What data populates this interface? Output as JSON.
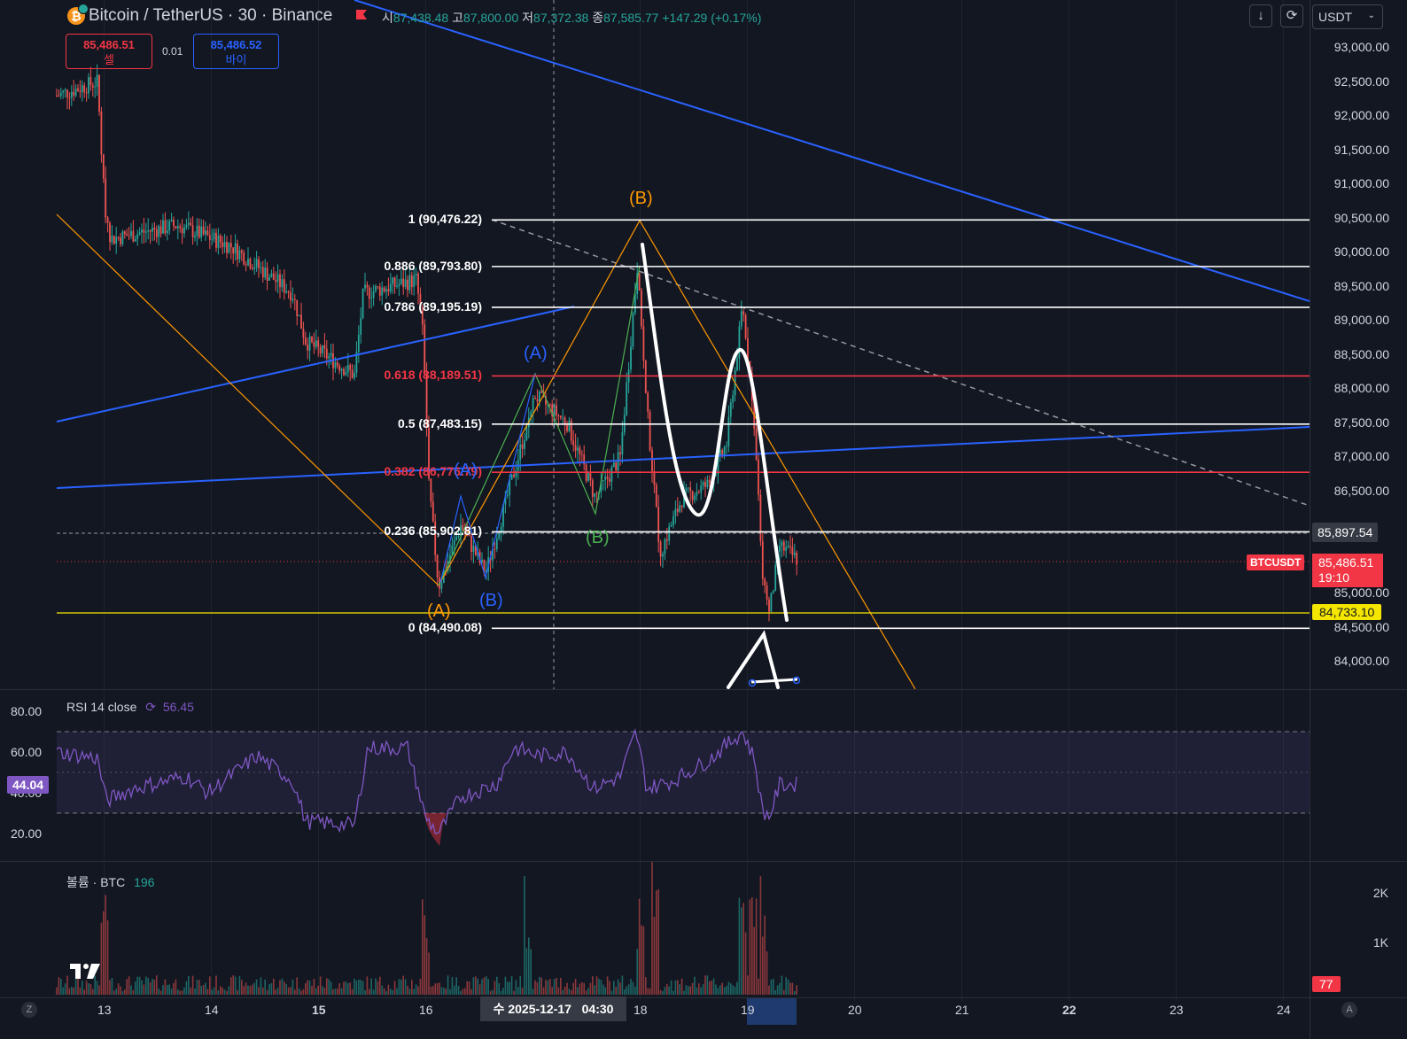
{
  "header": {
    "title": "Bitcoin / TetherUS · 30 · Binance",
    "coin_icon": "bitcoin-icon",
    "ohlc": [
      {
        "key": "시",
        "value": "87,438.48"
      },
      {
        "key": "고",
        "value": "87,800.00"
      },
      {
        "key": "저",
        "value": "87,372.38"
      },
      {
        "key": "종",
        "value": "87,585.77"
      }
    ],
    "change": "+147.29 (+0.17%)"
  },
  "trade": {
    "sell_price": "85,486.51",
    "sell_label": "셀",
    "qty": "0.01",
    "buy_price": "85,486.52",
    "buy_label": "바이"
  },
  "toolbar": {
    "currency": "USDT",
    "download_icon": "arrow-down-icon",
    "replay_icon": "refresh-icon",
    "dropdown_icon": "chevron-down-icon"
  },
  "price_axis": {
    "labels": [
      "93,000.00",
      "92,500.00",
      "92,000.00",
      "91,500.00",
      "91,000.00",
      "90,500.00",
      "90,000.00",
      "89,500.00",
      "89,000.00",
      "88,500.00",
      "88,000.00",
      "87,500.00",
      "87,000.00",
      "86,500.00",
      "85,000.00",
      "84,500.00",
      "84,000.00"
    ],
    "marker_price": "85,897.54",
    "symbol_tag": "BTCUSDT",
    "last_price": "85,486.51",
    "countdown": "19:10",
    "alert_price": "84,733.10"
  },
  "fib": [
    {
      "ratio_label": "1 (90,476.22)",
      "price": 90476.22,
      "color": "#ffffff"
    },
    {
      "ratio_label": "0.886 (89,793.80)",
      "price": 89793.8,
      "color": "#ffffff"
    },
    {
      "ratio_label": "0.786 (89,195.19)",
      "price": 89195.19,
      "color": "#ffffff"
    },
    {
      "ratio_label": "0.618 (88,189.51)",
      "price": 88189.51,
      "color": "#f23645"
    },
    {
      "ratio_label": "0.5 (87,483.15)",
      "price": 87483.15,
      "color": "#ffffff"
    },
    {
      "ratio_label": "0.382 (86,776.79)",
      "price": 86776.79,
      "color": "#f23645"
    },
    {
      "ratio_label": "0.236 (85,902.81)",
      "price": 85902.81,
      "color": "#ffffff"
    },
    {
      "ratio_label": "0 (84,490.08)",
      "price": 84490.08,
      "color": "#ffffff"
    }
  ],
  "waves": [
    {
      "text": "(B)",
      "color": "#ff9800",
      "color2": "#4caf50"
    },
    {
      "text": "(A)",
      "color": "#2962ff",
      "color2": "#4caf50"
    },
    {
      "text": "(A)",
      "color": "#2962ff"
    },
    {
      "text": "(B)",
      "color": "#4caf50"
    },
    {
      "text": "(A)",
      "color": "#ff9800"
    },
    {
      "text": "(B)",
      "color": "#2962ff"
    }
  ],
  "rsi": {
    "title": "RSI 14 close",
    "value": "56.45",
    "current": "44.04",
    "axis": [
      "80.00",
      "60.00",
      "40.00",
      "20.00"
    ],
    "upper": 70,
    "lower": 30
  },
  "volume": {
    "title": "볼륨 · BTC",
    "value": "196",
    "axis": [
      "2K",
      "1K"
    ],
    "current": "77"
  },
  "time_axis": {
    "labels": [
      "13",
      "14",
      "15",
      "16",
      "18",
      "19",
      "20",
      "21",
      "22",
      "23",
      "24"
    ],
    "bold": [
      "15",
      "22"
    ],
    "crosshair": "수 2025-12-17",
    "crosshair_time": "04:30",
    "left_btn": "Z",
    "right_btn": "A"
  },
  "colors": {
    "background": "#131722",
    "up": "#26a69a",
    "down": "#ef5350",
    "trend_blue": "#2962ff",
    "trend_orange": "#ff9800",
    "rsi_line": "#7e57c2"
  },
  "logo": "TV"
}
